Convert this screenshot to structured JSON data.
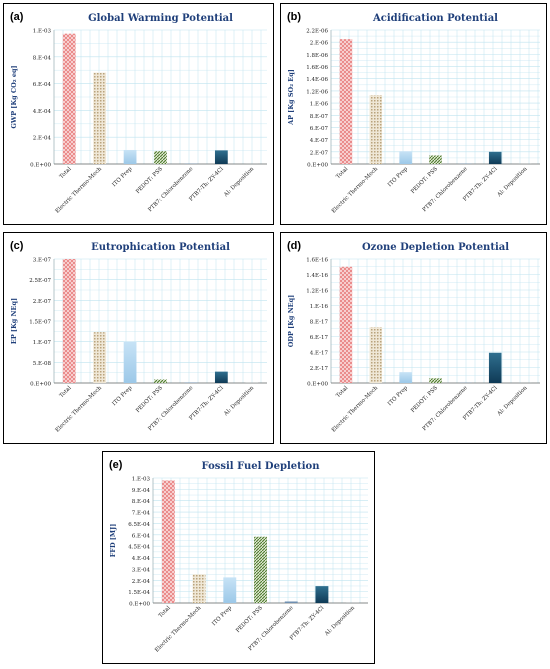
{
  "categories": [
    "Total",
    "Electric Thermo-Mech",
    "ITO Prep",
    "PEDOT: PSS",
    "PTB7: Chlorobenzene",
    "PTB7-Th: ZY-4Cl",
    "Al: Deposition"
  ],
  "colors": {
    "total": "#e87e7e",
    "electric": "#d7c8a8",
    "ito": "#a9d2ee",
    "pedot": "#4f7a2f",
    "ptb7": "#6f8fb0",
    "ptb7th": "#1f4f6f",
    "al": "#cccccc",
    "grid": "#bfe3ef",
    "title": "#1f3f7a",
    "ylabel": "#1f3f7a"
  },
  "chart_data": [
    {
      "panel_label": "(a)",
      "type": "bar",
      "title": "Global Warming Potential",
      "ylabel": "GWP [Kg CO₂ eq]",
      "ytick_labels": [
        "0.E+00",
        "2.E-04",
        "4.E-04",
        "6.E-04",
        "8.E-04",
        "1.E-03"
      ],
      "ylim": [
        0,
        0.0011
      ],
      "values": [
        0.00107,
        0.00075,
        0.000115,
        0.000105,
        2.5e-06,
        0.000112,
        5e-07
      ]
    },
    {
      "panel_label": "(b)",
      "type": "bar",
      "title": "Acidification Potential",
      "ylabel": "AP [Kg SO₂ Eq]",
      "ytick_labels": [
        "0.E+00",
        "2.E-07",
        "4.E-07",
        "6.E-07",
        "8.E-07",
        "1.E-06",
        "1.2E-06",
        "1.4E-06",
        "1.6E-06",
        "1.8E-06",
        "2.E-06",
        "2.2E-06"
      ],
      "ylim": [
        0,
        2.2e-06
      ],
      "values": [
        2.05e-06,
        1.13e-06,
        2.1e-07,
        1.4e-07,
        5e-09,
        2e-07,
        2e-09
      ]
    },
    {
      "panel_label": "(c)",
      "type": "bar",
      "title": "Eutrophication Potential",
      "ylabel": "EP [Kg NEq]",
      "ytick_labels": [
        "0.E+00",
        "5.E-08",
        "1.E-07",
        "1.5E-07",
        "2.E-07",
        "2.5E-07",
        "3.E-07"
      ],
      "ylim": [
        0,
        3e-07
      ],
      "values": [
        3.02e-07,
        1.23e-07,
        1e-07,
        8.5e-09,
        1e-09,
        2.75e-08,
        5e-10
      ]
    },
    {
      "panel_label": "(d)",
      "type": "bar",
      "title": "Ozone Depletion Potential",
      "ylabel": "ODP [Kg NEq]",
      "ytick_labels": [
        "0.E+00",
        "2.E-17",
        "4.E-17",
        "6.E-17",
        "8.E-17",
        "1.E-16",
        "1.2E-16",
        "1.4E-16",
        "1.6E-16"
      ],
      "ylim": [
        0,
        1.6e-16
      ],
      "values": [
        1.5e-16,
        7.2e-17,
        1.4e-17,
        6e-18,
        3e-19,
        3.9e-17,
        1e-19
      ]
    },
    {
      "panel_label": "(e)",
      "type": "bar",
      "title": "Fossil Fuel Depletion",
      "ylabel": "FFD [MJ]",
      "ytick_labels": [
        "0.E+00",
        "1.5E-04",
        "2.E-04",
        "3.E-04",
        "4.E-04",
        "4.5E-04",
        "6.E-04",
        "6.5E-04",
        "7.E-04",
        "8.E-04",
        "9.E-04",
        "1.E-03"
      ],
      "ylim": [
        0,
        0.001
      ],
      "values": [
        0.00098,
        0.00023,
        0.000205,
        0.00053,
        1.2e-05,
        0.000135,
        1e-06
      ]
    }
  ]
}
